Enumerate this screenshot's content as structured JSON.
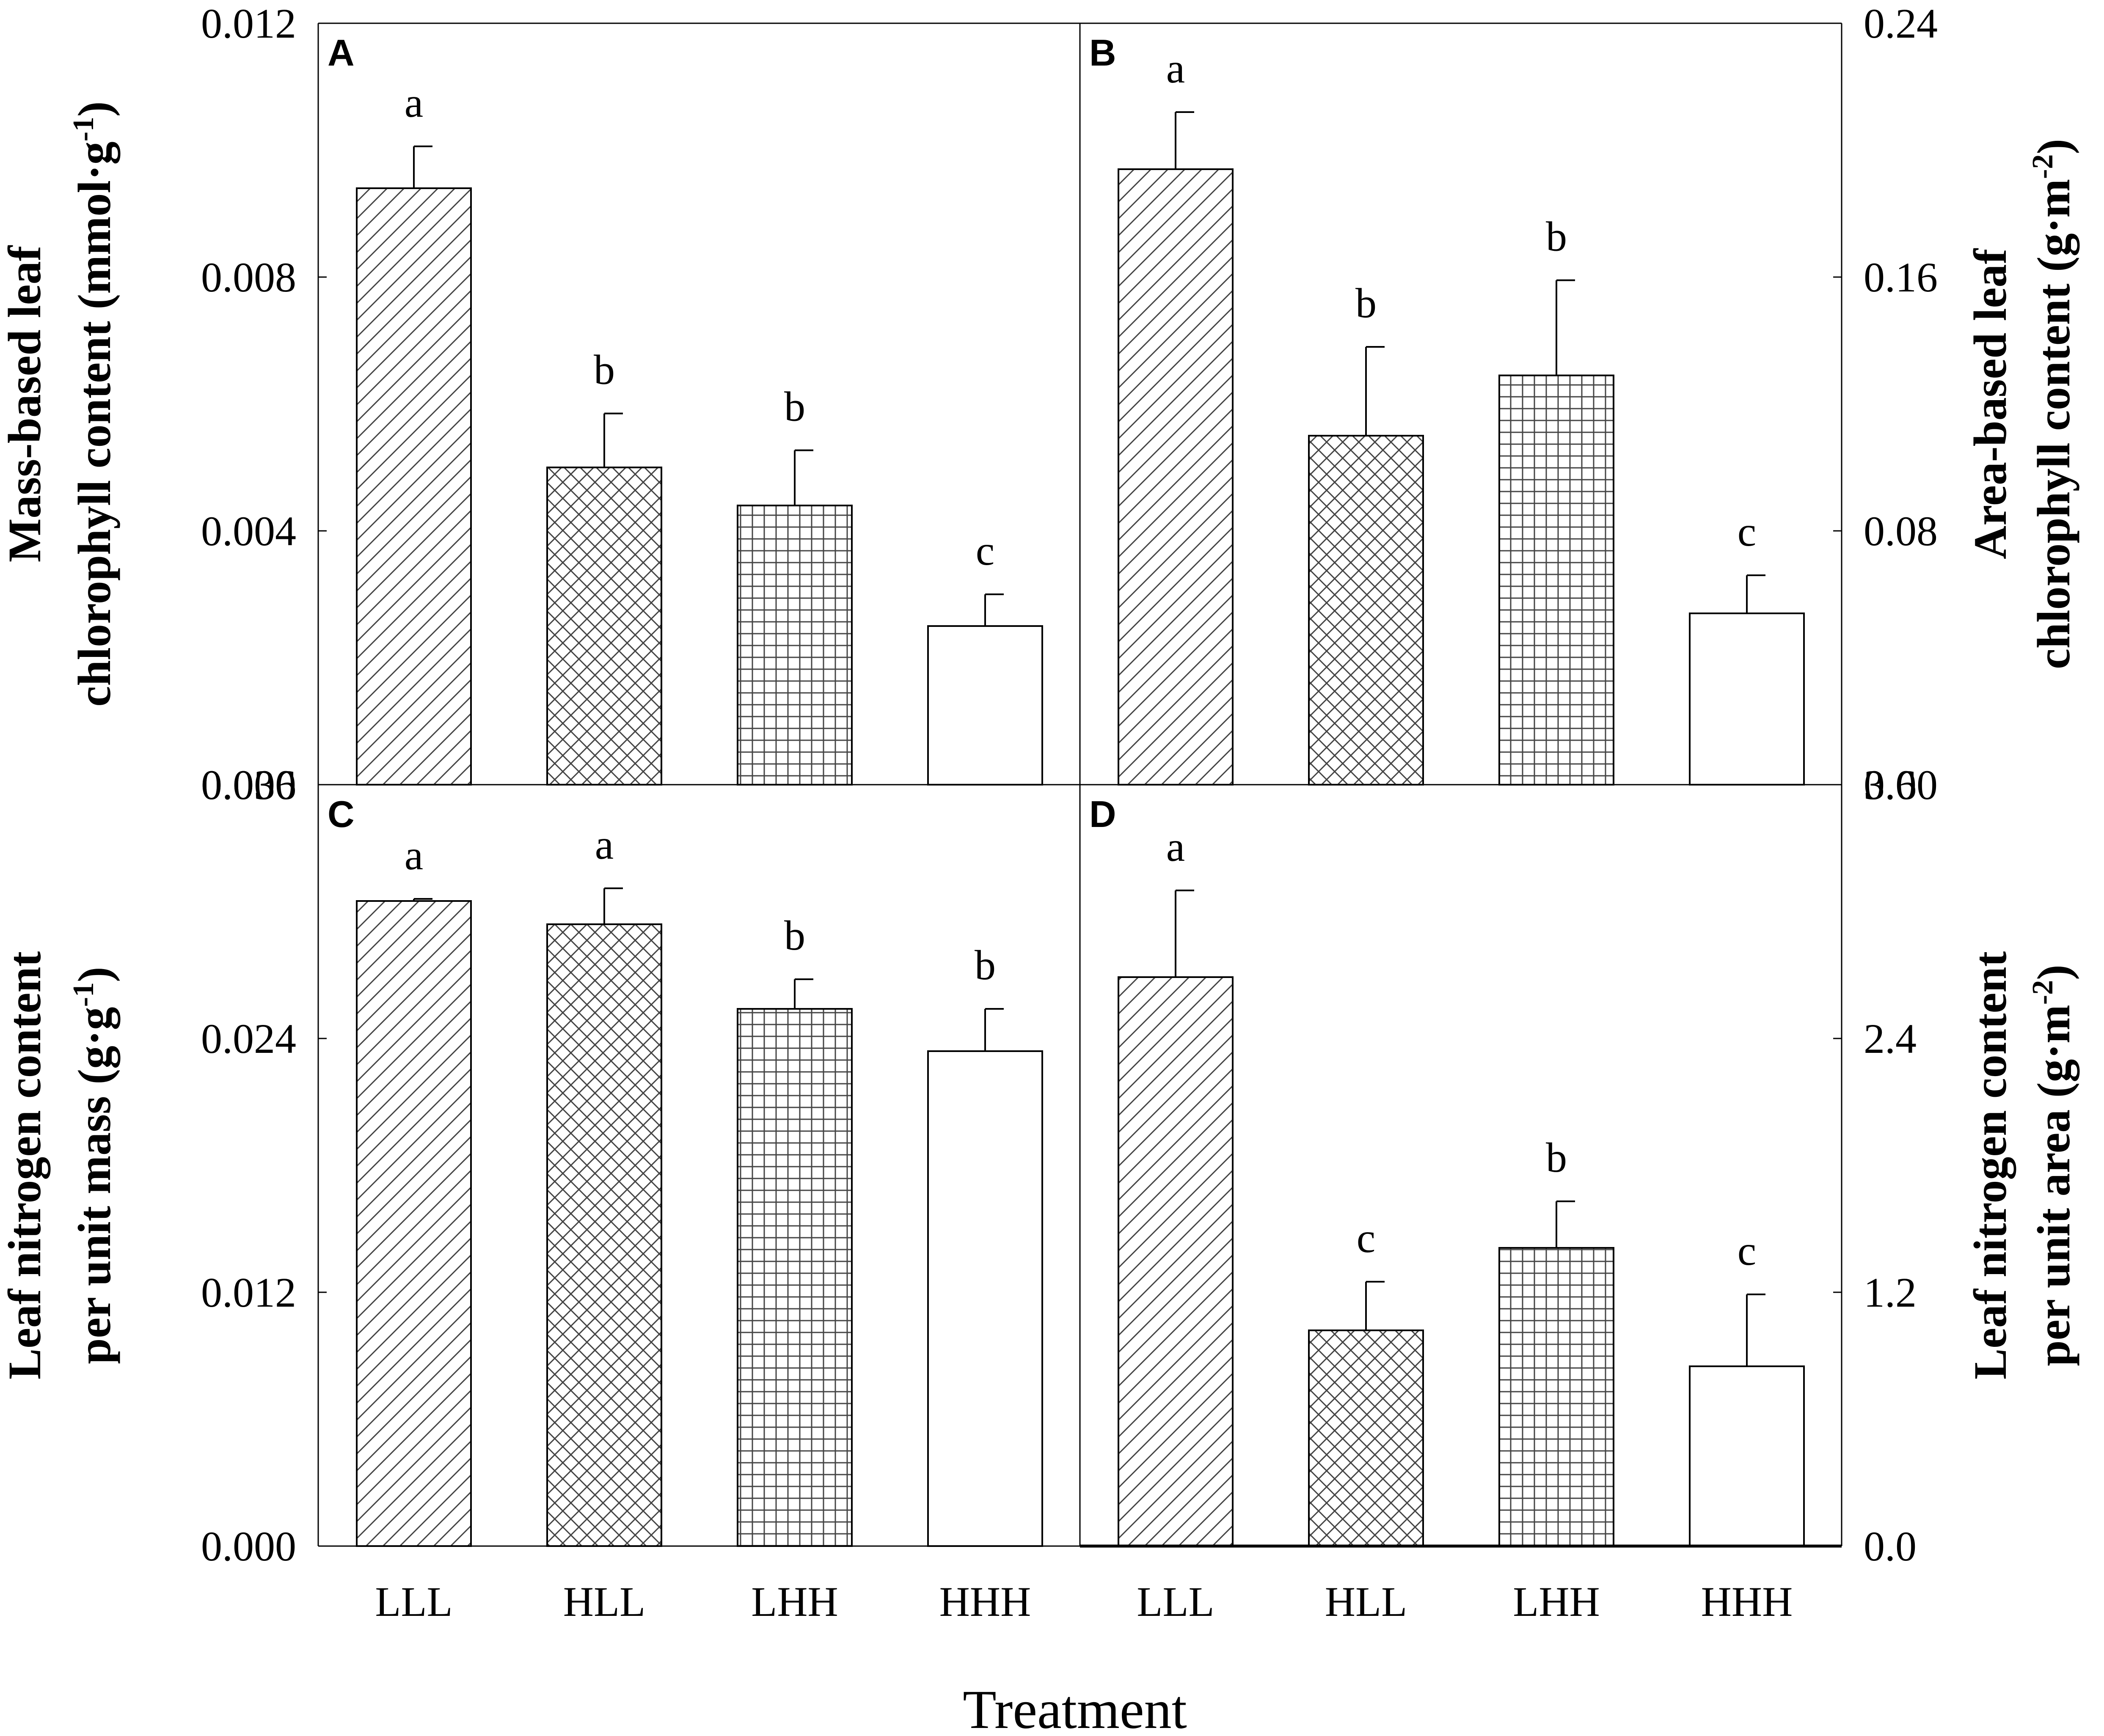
{
  "chart_data": [
    {
      "panel": "A",
      "type": "bar",
      "categories": [
        "LLL",
        "HLL",
        "LHH",
        "HHH"
      ],
      "values": [
        0.0094,
        0.005,
        0.0044,
        0.0025
      ],
      "errors": [
        0.00066,
        0.00085,
        0.00087,
        0.0005
      ],
      "significance": [
        "a",
        "b",
        "b",
        "c"
      ],
      "patterns": [
        "diagonal",
        "crosshatch",
        "grid",
        "none"
      ],
      "ylabel_lines": [
        "Mass-based leaf",
        "chlorophyll content (mmol·g",
        ")"
      ],
      "ylabel_sup": "-1",
      "yticks": [
        "0.000",
        "0.004",
        "0.008",
        "0.012"
      ],
      "ylim": [
        0,
        0.012
      ]
    },
    {
      "panel": "B",
      "type": "bar",
      "categories": [
        "LLL",
        "HLL",
        "LHH",
        "HHH"
      ],
      "values": [
        0.194,
        0.11,
        0.129,
        0.054
      ],
      "errors": [
        0.018,
        0.028,
        0.03,
        0.012
      ],
      "significance": [
        "a",
        "b",
        "b",
        "c"
      ],
      "patterns": [
        "diagonal",
        "crosshatch",
        "grid",
        "none"
      ],
      "ylabel_lines": [
        "Area-based leaf",
        "chlorophyll content (g·m",
        ")"
      ],
      "ylabel_sup": "-2",
      "yticks": [
        "0.00",
        "0.08",
        "0.16",
        "0.24"
      ],
      "ylim": [
        0,
        0.24
      ]
    },
    {
      "panel": "C",
      "type": "bar",
      "categories": [
        "LLL",
        "HLL",
        "LHH",
        "HHH"
      ],
      "values": [
        0.0305,
        0.0294,
        0.0254,
        0.0234
      ],
      "errors": [
        0.0001,
        0.0017,
        0.0014,
        0.002
      ],
      "significance": [
        "a",
        "a",
        "b",
        "b"
      ],
      "patterns": [
        "diagonal",
        "crosshatch",
        "grid",
        "none"
      ],
      "ylabel_lines": [
        "Leaf nitrogen content",
        "per unit mass (g·g",
        ")"
      ],
      "ylabel_sup": "-1",
      "yticks": [
        "0.000",
        "0.012",
        "0.024",
        "0.036"
      ],
      "ylim": [
        0,
        0.036
      ]
    },
    {
      "panel": "D",
      "type": "bar",
      "categories": [
        "LLL",
        "HLL",
        "LHH",
        "HHH"
      ],
      "values": [
        2.69,
        1.02,
        1.41,
        0.85
      ],
      "errors": [
        0.41,
        0.23,
        0.22,
        0.34
      ],
      "significance": [
        "a",
        "c",
        "b",
        "c"
      ],
      "patterns": [
        "diagonal",
        "crosshatch",
        "grid",
        "none"
      ],
      "ylabel_lines": [
        "Leaf nitrogen content",
        "per unit area (g·m",
        ")"
      ],
      "ylabel_sup": "-2",
      "yticks": [
        "0.0",
        "1.2",
        "2.4",
        "3.6"
      ],
      "ylim": [
        0,
        3.6
      ]
    }
  ],
  "xlabel": "Treatment"
}
